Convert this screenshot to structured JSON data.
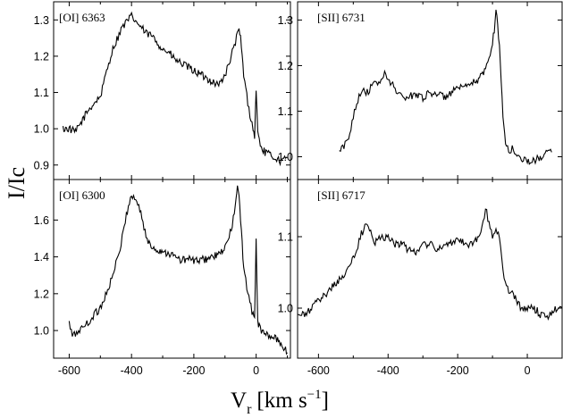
{
  "figure": {
    "ylabel": "I/Ic",
    "xlabel_main": "V",
    "xlabel_sub": "r",
    "xlabel_unit": "[km s",
    "xlabel_exp": "−1",
    "xlabel_close": "]"
  },
  "chart_data": [
    {
      "type": "line",
      "panel": "top-left",
      "label": "[OI] 6363",
      "xlim": [
        -650,
        110
      ],
      "ylim": [
        0.86,
        1.35
      ],
      "xticks": [
        -600,
        -400,
        -200,
        0
      ],
      "yticks": [
        0.9,
        1.0,
        1.1,
        1.2,
        1.3
      ],
      "yticklabels": [
        "0.9",
        "1.0",
        "1.1",
        "1.2",
        "1.3"
      ],
      "x": [
        -620,
        -600,
        -580,
        -560,
        -540,
        -520,
        -500,
        -490,
        -480,
        -470,
        -460,
        -450,
        -440,
        -430,
        -420,
        -410,
        -400,
        -390,
        -380,
        -370,
        -360,
        -350,
        -340,
        -330,
        -320,
        -300,
        -280,
        -260,
        -240,
        -220,
        -200,
        -180,
        -160,
        -140,
        -120,
        -100,
        -90,
        -80,
        -70,
        -60,
        -55,
        -50,
        -45,
        -40,
        -30,
        -20,
        -10,
        -5,
        0,
        5,
        10,
        20,
        40,
        60,
        80,
        100
      ],
      "values": [
        1.0,
        1.0,
        0.99,
        1.02,
        1.05,
        1.07,
        1.09,
        1.12,
        1.16,
        1.19,
        1.22,
        1.24,
        1.26,
        1.28,
        1.29,
        1.3,
        1.31,
        1.3,
        1.29,
        1.28,
        1.27,
        1.26,
        1.26,
        1.25,
        1.24,
        1.22,
        1.21,
        1.19,
        1.18,
        1.17,
        1.16,
        1.15,
        1.14,
        1.13,
        1.12,
        1.15,
        1.17,
        1.2,
        1.23,
        1.26,
        1.27,
        1.25,
        1.2,
        1.15,
        1.09,
        1.04,
        1.0,
        0.98,
        1.11,
        0.99,
        0.97,
        0.94,
        0.93,
        0.92,
        0.91,
        0.92
      ]
    },
    {
      "type": "line",
      "panel": "bottom-left",
      "label": "[OI] 6300",
      "xlim": [
        -650,
        110
      ],
      "ylim": [
        0.85,
        1.82
      ],
      "xticks": [
        -600,
        -400,
        -200,
        0
      ],
      "xticklabels": [
        "-600",
        "-400",
        "-200",
        "0"
      ],
      "yticks": [
        1.0,
        1.2,
        1.4,
        1.6
      ],
      "yticklabels": [
        "1.0",
        "1.2",
        "1.4",
        "1.6"
      ],
      "x": [
        -600,
        -590,
        -580,
        -570,
        -560,
        -550,
        -540,
        -530,
        -520,
        -510,
        -500,
        -490,
        -480,
        -470,
        -460,
        -450,
        -440,
        -430,
        -420,
        -410,
        -400,
        -390,
        -380,
        -370,
        -360,
        -350,
        -340,
        -320,
        -300,
        -280,
        -260,
        -240,
        -220,
        -200,
        -180,
        -160,
        -140,
        -120,
        -100,
        -90,
        -80,
        -70,
        -65,
        -60,
        -55,
        -50,
        -45,
        -40,
        -30,
        -20,
        -10,
        -5,
        0,
        5,
        10,
        20,
        40,
        60,
        80,
        100
      ],
      "values": [
        1.04,
        0.97,
        0.98,
        1.0,
        1.01,
        1.03,
        1.04,
        1.06,
        1.09,
        1.1,
        1.13,
        1.16,
        1.21,
        1.25,
        1.3,
        1.36,
        1.42,
        1.5,
        1.6,
        1.68,
        1.73,
        1.72,
        1.69,
        1.64,
        1.56,
        1.49,
        1.46,
        1.44,
        1.43,
        1.42,
        1.4,
        1.38,
        1.39,
        1.38,
        1.38,
        1.39,
        1.4,
        1.41,
        1.45,
        1.49,
        1.55,
        1.64,
        1.7,
        1.78,
        1.72,
        1.6,
        1.47,
        1.35,
        1.24,
        1.15,
        1.08,
        1.07,
        1.5,
        1.05,
        1.02,
        0.99,
        0.97,
        0.96,
        0.93,
        0.88
      ]
    },
    {
      "type": "line",
      "panel": "top-right",
      "label": "[SII] 6731",
      "xlim": [
        -660,
        100
      ],
      "ylim": [
        0.95,
        1.34
      ],
      "xticks": [
        -600,
        -400,
        -200,
        0
      ],
      "yticks": [
        1.0,
        1.1,
        1.2,
        1.3
      ],
      "yticklabels": [
        "1.0",
        "1.1",
        "1.2",
        "1.3"
      ],
      "x": [
        -540,
        -530,
        -520,
        -510,
        -500,
        -490,
        -480,
        -470,
        -460,
        -450,
        -440,
        -430,
        -420,
        -410,
        -400,
        -390,
        -380,
        -370,
        -360,
        -350,
        -340,
        -320,
        -300,
        -280,
        -260,
        -240,
        -220,
        -200,
        -180,
        -160,
        -140,
        -120,
        -110,
        -100,
        -95,
        -90,
        -85,
        -80,
        -75,
        -70,
        -65,
        -60,
        -50,
        -40,
        -30,
        -20,
        0,
        20,
        40,
        60,
        70
      ],
      "values": [
        1.01,
        1.02,
        1.03,
        1.05,
        1.09,
        1.12,
        1.14,
        1.15,
        1.14,
        1.15,
        1.16,
        1.16,
        1.17,
        1.18,
        1.17,
        1.16,
        1.15,
        1.14,
        1.13,
        1.13,
        1.13,
        1.14,
        1.13,
        1.14,
        1.14,
        1.13,
        1.14,
        1.15,
        1.15,
        1.16,
        1.17,
        1.19,
        1.22,
        1.25,
        1.28,
        1.32,
        1.29,
        1.24,
        1.17,
        1.09,
        1.05,
        1.02,
        1.01,
        1.02,
        1.0,
        1.0,
        0.99,
        0.99,
        1.0,
        1.01,
        1.01
      ]
    },
    {
      "type": "line",
      "panel": "bottom-right",
      "label": "[SII] 6717",
      "xlim": [
        -660,
        100
      ],
      "ylim": [
        0.93,
        1.18
      ],
      "xticks": [
        -600,
        -400,
        -200,
        0
      ],
      "xticklabels": [
        "-600",
        "-400",
        "-200",
        "0"
      ],
      "yticks": [
        1.0,
        1.1
      ],
      "yticklabels": [
        "1.0",
        "1.1"
      ],
      "x": [
        -660,
        -640,
        -620,
        -600,
        -580,
        -560,
        -540,
        -520,
        -500,
        -490,
        -480,
        -470,
        -460,
        -450,
        -440,
        -420,
        -400,
        -380,
        -360,
        -340,
        -320,
        -300,
        -280,
        -260,
        -240,
        -220,
        -200,
        -180,
        -160,
        -140,
        -130,
        -120,
        -110,
        -100,
        -90,
        -80,
        -70,
        -60,
        -50,
        -40,
        -20,
        0,
        20,
        40,
        60,
        80,
        100
      ],
      "values": [
        0.99,
        0.99,
        1.0,
        1.01,
        1.02,
        1.03,
        1.04,
        1.05,
        1.07,
        1.08,
        1.1,
        1.11,
        1.12,
        1.11,
        1.09,
        1.1,
        1.1,
        1.09,
        1.09,
        1.08,
        1.08,
        1.09,
        1.09,
        1.08,
        1.09,
        1.09,
        1.1,
        1.09,
        1.09,
        1.1,
        1.11,
        1.14,
        1.12,
        1.1,
        1.11,
        1.1,
        1.05,
        1.03,
        1.02,
        1.02,
        1.0,
        1.0,
        1.0,
        0.99,
        0.99,
        1.0,
        1.0
      ]
    }
  ]
}
